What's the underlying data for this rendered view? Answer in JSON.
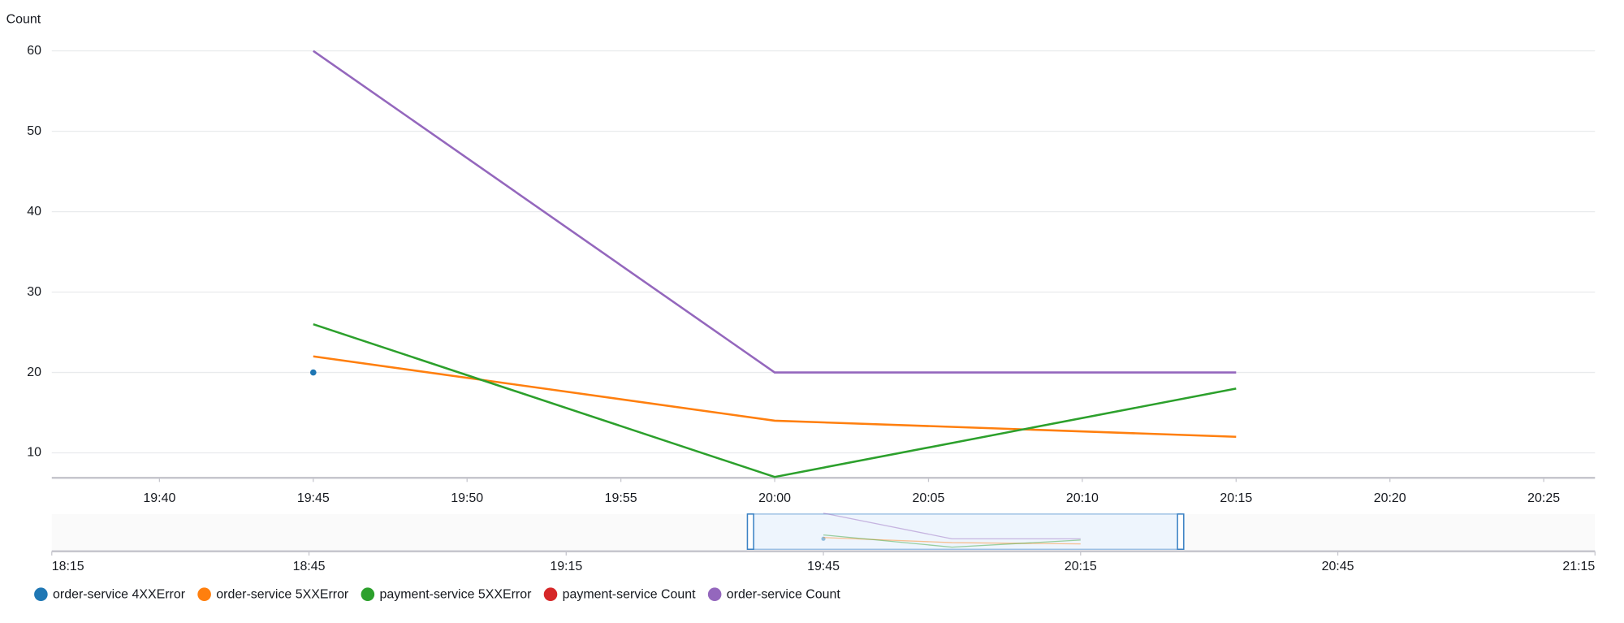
{
  "chart_data": {
    "type": "line",
    "y_label": "Count",
    "x": [
      "19:45",
      "20:00",
      "20:15"
    ],
    "xlim": [
      "19:36:30",
      "20:26:40"
    ],
    "xticks": [
      "19:40",
      "19:45",
      "19:50",
      "19:55",
      "20:00",
      "20:05",
      "20:10",
      "20:15",
      "20:20",
      "20:25"
    ],
    "ylim": [
      6.9,
      61.8
    ],
    "yticks": [
      10,
      20,
      30,
      40,
      50,
      60
    ],
    "grid": true,
    "series": [
      {
        "name": "order-service 4XXError",
        "color": "#1f77b4",
        "values": [
          20,
          null,
          null
        ]
      },
      {
        "name": "order-service 5XXError",
        "color": "#ff7f0e",
        "values": [
          22,
          14,
          12
        ]
      },
      {
        "name": "payment-service 5XXError",
        "color": "#2ca02c",
        "values": [
          26,
          7,
          18
        ]
      },
      {
        "name": "payment-service Count",
        "color": "#d62728",
        "values": [
          null,
          null,
          null
        ]
      },
      {
        "name": "order-service Count",
        "color": "#9467bd",
        "values": [
          60,
          20,
          20
        ]
      }
    ],
    "navigator": {
      "xlim": [
        "18:15",
        "21:15"
      ],
      "xticks": [
        "18:15",
        "18:45",
        "19:15",
        "19:45",
        "20:15",
        "20:45",
        "21:15"
      ]
    }
  }
}
